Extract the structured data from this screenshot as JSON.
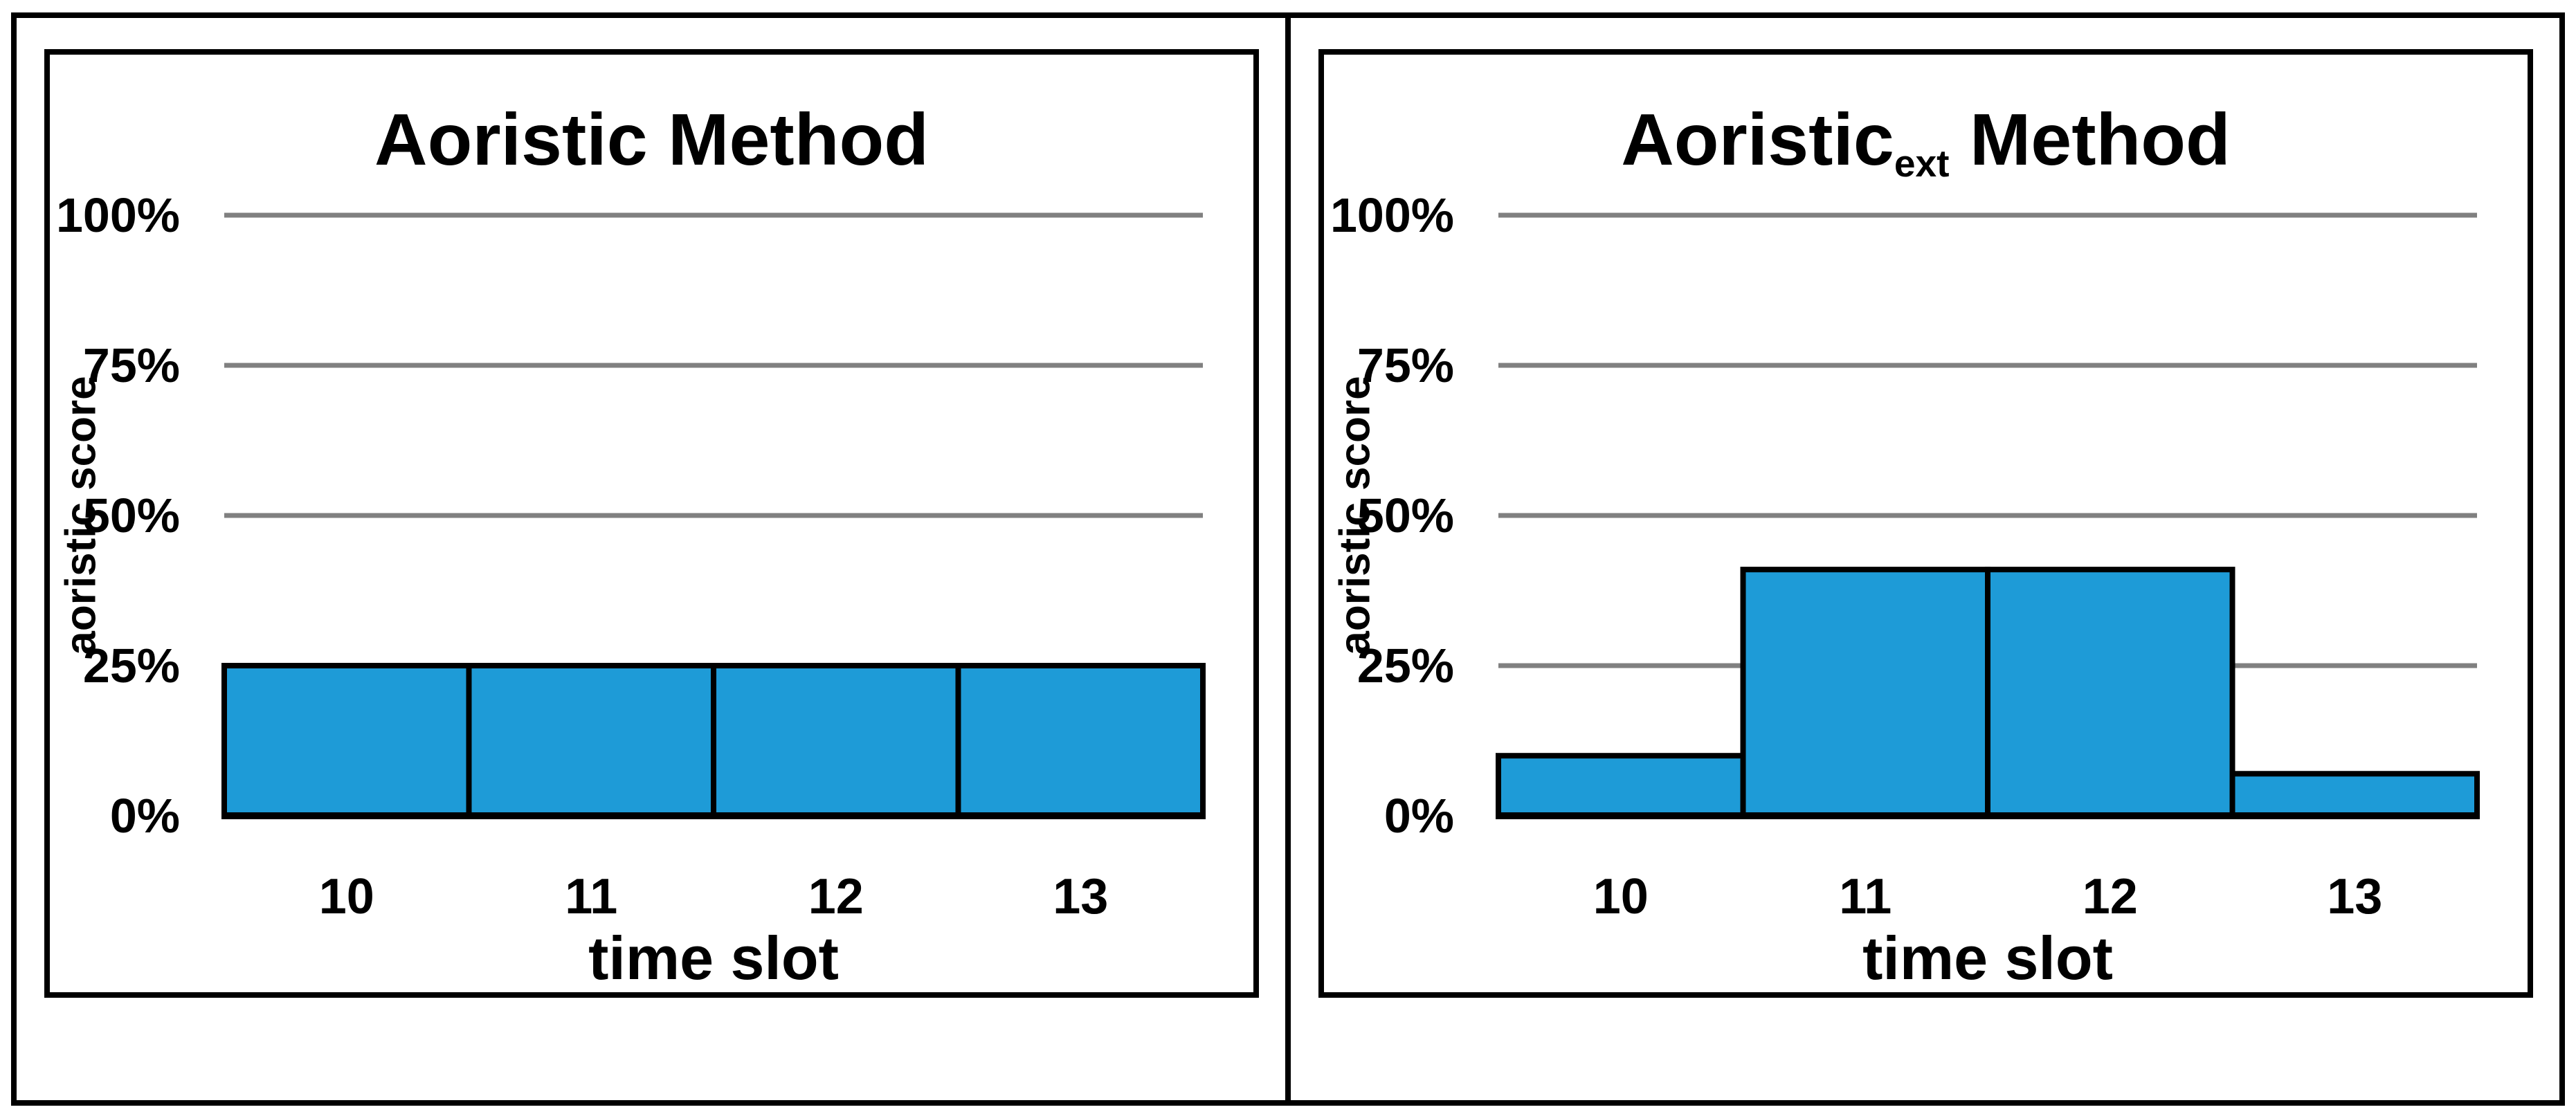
{
  "page": {
    "background": "#ffffff"
  },
  "colors": {
    "bar_fill": "#1E9BD7",
    "bar_stroke": "#000000",
    "gridline": "#808080",
    "axis_line": "#000000",
    "frame": "#000000",
    "text": "#000000"
  },
  "chart_data": [
    {
      "type": "bar",
      "title": "Aoristic Method",
      "title_parts": {
        "pre": "Aoristic",
        "sub": "",
        "post": " Method"
      },
      "xlabel": "time slot",
      "ylabel": "aoristic score",
      "categories": [
        "10",
        "11",
        "12",
        "13"
      ],
      "values": [
        25,
        25,
        25,
        25
      ],
      "value_unit": "%",
      "ylim": [
        0,
        100
      ],
      "yticks": [
        {
          "value": 100,
          "label": "100%"
        },
        {
          "value": 75,
          "label": "75%"
        },
        {
          "value": 50,
          "label": "50%"
        },
        {
          "value": 25,
          "label": "25%"
        },
        {
          "value": 0,
          "label": "0%"
        }
      ],
      "grid": true,
      "legend": false
    },
    {
      "type": "bar",
      "title": "Aoristic ext Method",
      "title_parts": {
        "pre": "Aoristic",
        "sub": "ext",
        "post": " Method"
      },
      "xlabel": "time slot",
      "ylabel": "aoristic score",
      "categories": [
        "10",
        "11",
        "12",
        "13"
      ],
      "values": [
        10,
        41,
        41,
        7
      ],
      "value_unit": "%",
      "ylim": [
        0,
        100
      ],
      "yticks": [
        {
          "value": 100,
          "label": "100%"
        },
        {
          "value": 75,
          "label": "75%"
        },
        {
          "value": 50,
          "label": "50%"
        },
        {
          "value": 25,
          "label": "25%"
        },
        {
          "value": 0,
          "label": "0%"
        }
      ],
      "grid": true,
      "legend": false
    }
  ]
}
